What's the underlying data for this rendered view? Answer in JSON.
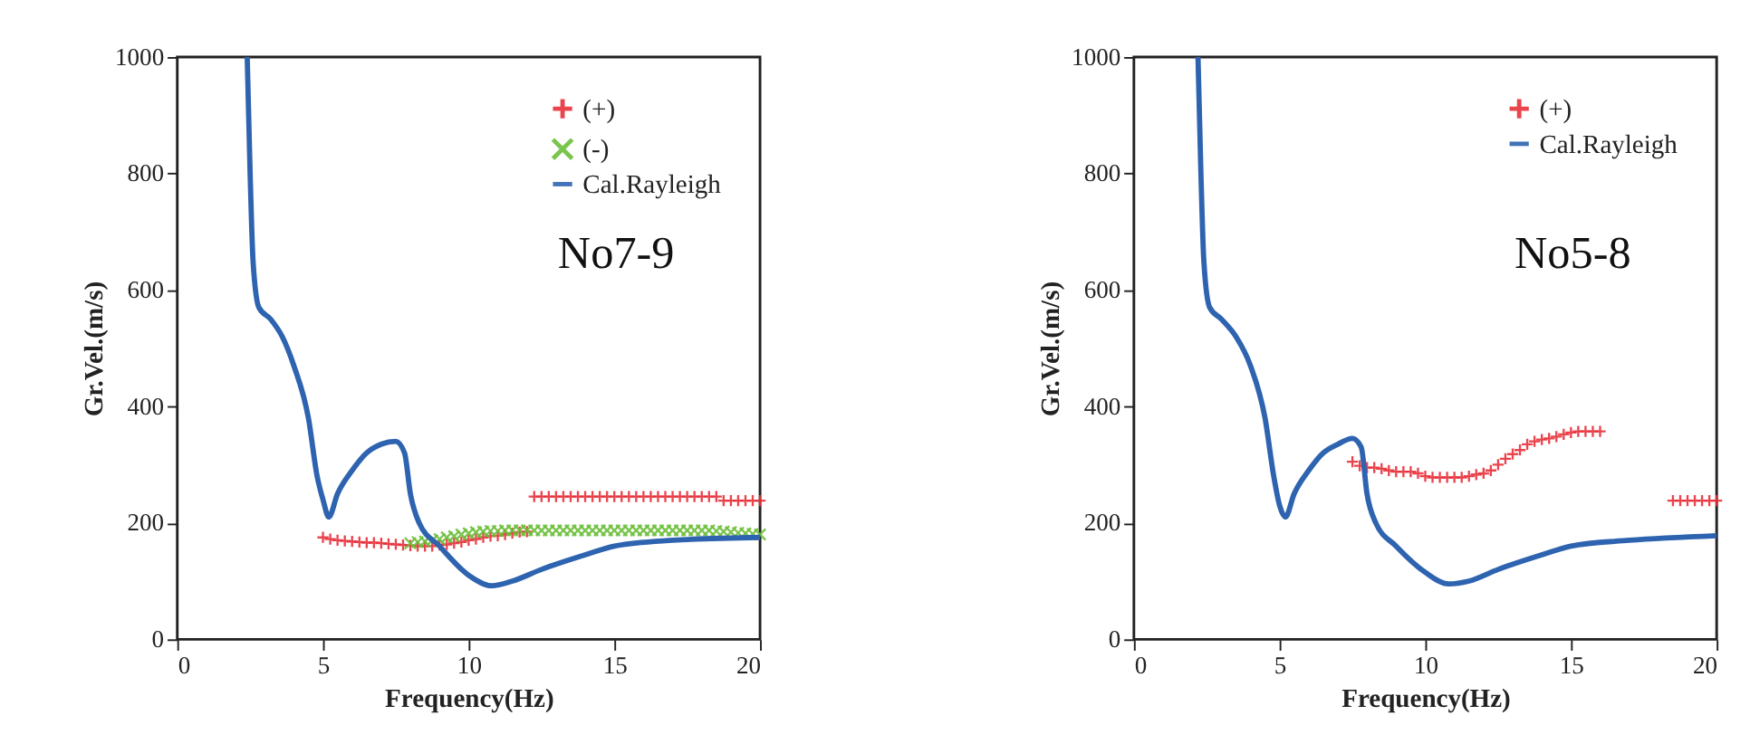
{
  "chart_data": [
    {
      "type": "scatter",
      "xlabel": "Frequency(Hz)",
      "ylabel": "Gr.Vel.(m/s)",
      "annotations": [
        "No7-9"
      ],
      "xlim": [
        0,
        20
      ],
      "ylim": [
        0,
        1000
      ],
      "xticks": [
        0,
        5,
        10,
        15,
        20
      ],
      "yticks": [
        0,
        200,
        400,
        600,
        800,
        1000
      ],
      "grid": false,
      "legend": "top right",
      "series": [
        {
          "name": "(+)",
          "color": "#e8303a",
          "marker": "cross",
          "x": [
            5,
            5.25,
            5.5,
            5.75,
            6,
            6.25,
            6.5,
            6.75,
            7,
            7.25,
            7.5,
            7.75,
            8,
            8.25,
            8.5,
            8.75,
            9,
            9.25,
            9.5,
            9.75,
            10,
            10.25,
            10.5,
            10.75,
            11,
            11.25,
            11.5,
            11.75,
            12,
            12.25,
            12.5,
            12.75,
            13,
            13.25,
            13.5,
            13.75,
            14,
            14.25,
            14.5,
            14.75,
            15,
            15.25,
            15.5,
            15.75,
            16,
            16.25,
            16.5,
            16.75,
            17,
            17.25,
            17.5,
            17.75,
            18,
            18.25,
            18.5,
            18.75,
            19,
            19.25,
            19.5,
            19.75,
            20
          ],
          "values": [
            175,
            172,
            170,
            169,
            168,
            167,
            166,
            166,
            165,
            164,
            163,
            162,
            161,
            160,
            160,
            160,
            162,
            163,
            165,
            167,
            170,
            172,
            175,
            177,
            178,
            180,
            182,
            184,
            185,
            245,
            245,
            245,
            245,
            245,
            245,
            245,
            245,
            245,
            245,
            245,
            245,
            245,
            245,
            245,
            245,
            245,
            245,
            245,
            245,
            245,
            245,
            245,
            245,
            245,
            245,
            238,
            238,
            238,
            238,
            238,
            238
          ]
        },
        {
          "name": "(-)",
          "color": "#6cbf3a",
          "marker": "x",
          "x": [
            8,
            8.25,
            8.5,
            8.75,
            9,
            9.25,
            9.5,
            9.75,
            10,
            10.25,
            10.5,
            10.75,
            11,
            11.25,
            11.5,
            11.75,
            12,
            12.25,
            12.5,
            12.75,
            13,
            13.25,
            13.5,
            13.75,
            14,
            14.25,
            14.5,
            14.75,
            15,
            15.25,
            15.5,
            15.75,
            16,
            16.25,
            16.5,
            16.75,
            17,
            17.25,
            17.5,
            17.75,
            18,
            18.25,
            18.5,
            18.75,
            19,
            19.25,
            19.5,
            19.75,
            20
          ],
          "values": [
            165,
            167,
            168,
            170,
            172,
            175,
            177,
            180,
            182,
            184,
            185,
            186,
            186,
            187,
            187,
            187,
            187,
            187,
            187,
            187,
            187,
            187,
            187,
            187,
            187,
            187,
            187,
            187,
            187,
            187,
            187,
            187,
            187,
            187,
            187,
            187,
            187,
            187,
            187,
            187,
            187,
            187,
            186,
            185,
            184,
            183,
            182,
            181,
            180
          ]
        },
        {
          "name": "Cal.Rayleigh",
          "type": "line",
          "color": "#2e63b0",
          "marker": "none",
          "x": [
            2.4,
            2.5,
            2.6,
            2.8,
            3.2,
            3.6,
            4.0,
            4.5,
            4.8,
            5.0,
            5.2,
            5.5,
            6.0,
            6.5,
            7.0,
            7.5,
            7.8,
            8.0,
            8.3,
            9.0,
            10.0,
            10.8,
            11.5,
            12.5,
            14,
            15,
            17,
            20
          ],
          "values": [
            1000,
            800,
            650,
            570,
            550,
            520,
            470,
            380,
            280,
            240,
            210,
            250,
            290,
            320,
            335,
            340,
            320,
            250,
            200,
            160,
            110,
            92,
            100,
            120,
            145,
            160,
            170,
            175
          ]
        }
      ]
    },
    {
      "type": "scatter",
      "xlabel": "Frequency(Hz)",
      "ylabel": "Gr.Vel.(m/s)",
      "annotations": [
        "No5-8"
      ],
      "xlim": [
        0,
        20
      ],
      "ylim": [
        0,
        1000
      ],
      "xticks": [
        0,
        5,
        10,
        15,
        20
      ],
      "yticks": [
        0,
        200,
        400,
        600,
        800,
        1000
      ],
      "grid": false,
      "legend": "top right",
      "series": [
        {
          "name": "(+)",
          "color": "#e8303a",
          "marker": "cross",
          "x": [
            7.5,
            7.75,
            8,
            8.25,
            8.5,
            8.75,
            9,
            9.25,
            9.5,
            9.75,
            10,
            10.25,
            10.5,
            10.75,
            11,
            11.25,
            11.5,
            11.75,
            12,
            12.25,
            12.5,
            12.75,
            13,
            13.25,
            13.5,
            13.75,
            14,
            14.25,
            14.5,
            14.75,
            15,
            15.25,
            15.5,
            15.75,
            16,
            18.5,
            18.75,
            19,
            19.25,
            19.5,
            19.75,
            20
          ],
          "values": [
            305,
            298,
            295,
            295,
            293,
            290,
            288,
            288,
            288,
            285,
            280,
            278,
            278,
            278,
            278,
            278,
            280,
            283,
            285,
            290,
            300,
            310,
            318,
            325,
            335,
            340,
            343,
            345,
            348,
            352,
            355,
            357,
            357,
            357,
            357,
            238,
            238,
            238,
            238,
            238,
            238,
            238
          ]
        },
        {
          "name": "Cal.Rayleigh",
          "type": "line",
          "color": "#2e63b0",
          "marker": "none",
          "x": [
            2.2,
            2.3,
            2.4,
            2.6,
            3.0,
            3.5,
            4.0,
            4.5,
            4.8,
            5.0,
            5.2,
            5.5,
            6.0,
            6.5,
            7.0,
            7.5,
            7.8,
            8.0,
            8.3,
            9.0,
            10.0,
            10.8,
            11.5,
            12.5,
            14,
            15,
            17,
            20
          ],
          "values": [
            1000,
            800,
            650,
            570,
            550,
            520,
            470,
            380,
            280,
            230,
            210,
            250,
            290,
            320,
            335,
            345,
            330,
            250,
            200,
            160,
            115,
            95,
            100,
            120,
            145,
            160,
            170,
            178
          ]
        }
      ]
    }
  ]
}
